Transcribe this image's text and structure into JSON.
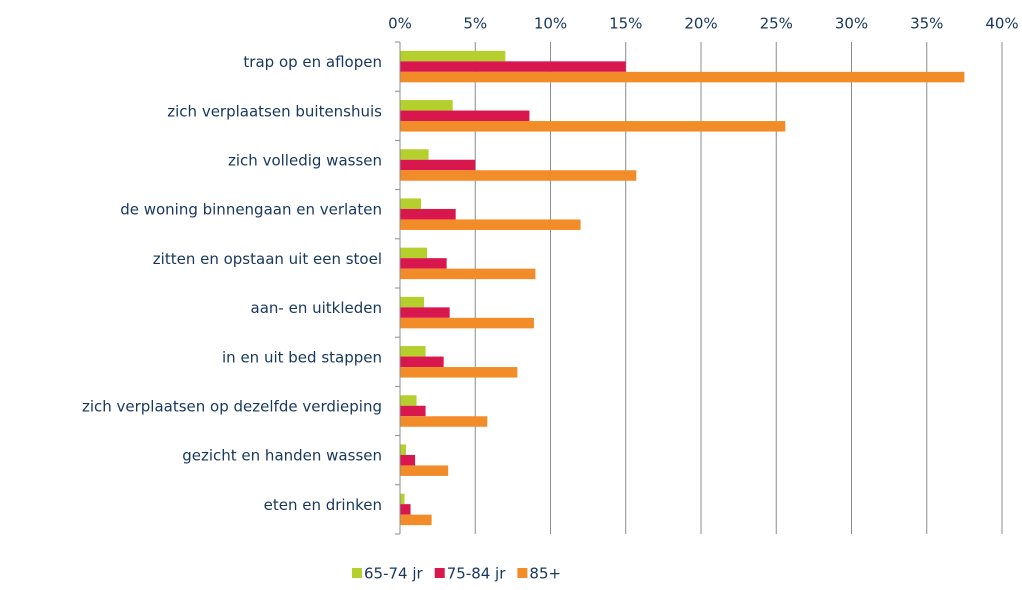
{
  "chart_data": {
    "type": "hbar",
    "categories": [
      "trap op en aflopen",
      "zich verplaatsen buitenshuis",
      "zich volledig wassen",
      "de woning binnengaan en verlaten",
      "zitten en opstaan uit een stoel",
      "aan- en uitkleden",
      "in en uit bed stappen",
      "zich verplaatsen op dezelfde verdieping",
      "gezicht en handen wassen",
      "eten en drinken"
    ],
    "series": [
      {
        "name": "65-74 jr",
        "color": "#b5cf2d",
        "values": [
          7.0,
          3.5,
          1.9,
          1.4,
          1.8,
          1.6,
          1.7,
          1.1,
          0.4,
          0.3
        ]
      },
      {
        "name": "75-84 jr",
        "color": "#d8174e",
        "values": [
          15.0,
          8.6,
          5.0,
          3.7,
          3.1,
          3.3,
          2.9,
          1.7,
          1.0,
          0.7
        ]
      },
      {
        "name": "85+",
        "color": "#f28c28",
        "values": [
          37.5,
          25.6,
          15.7,
          12.0,
          9.0,
          8.9,
          7.8,
          5.8,
          3.2,
          2.1
        ]
      }
    ],
    "xlim": [
      0,
      40
    ],
    "xticks": [
      {
        "value": 0,
        "label": "0%"
      },
      {
        "value": 5,
        "label": "5%"
      },
      {
        "value": 10,
        "label": "10%"
      },
      {
        "value": 15,
        "label": "15%"
      },
      {
        "value": 20,
        "label": "20%"
      },
      {
        "value": 25,
        "label": "25%"
      },
      {
        "value": 30,
        "label": "30%"
      },
      {
        "value": 35,
        "label": "35%"
      },
      {
        "value": 40,
        "label": "40%"
      }
    ],
    "grid": true,
    "legend": "bottom"
  }
}
